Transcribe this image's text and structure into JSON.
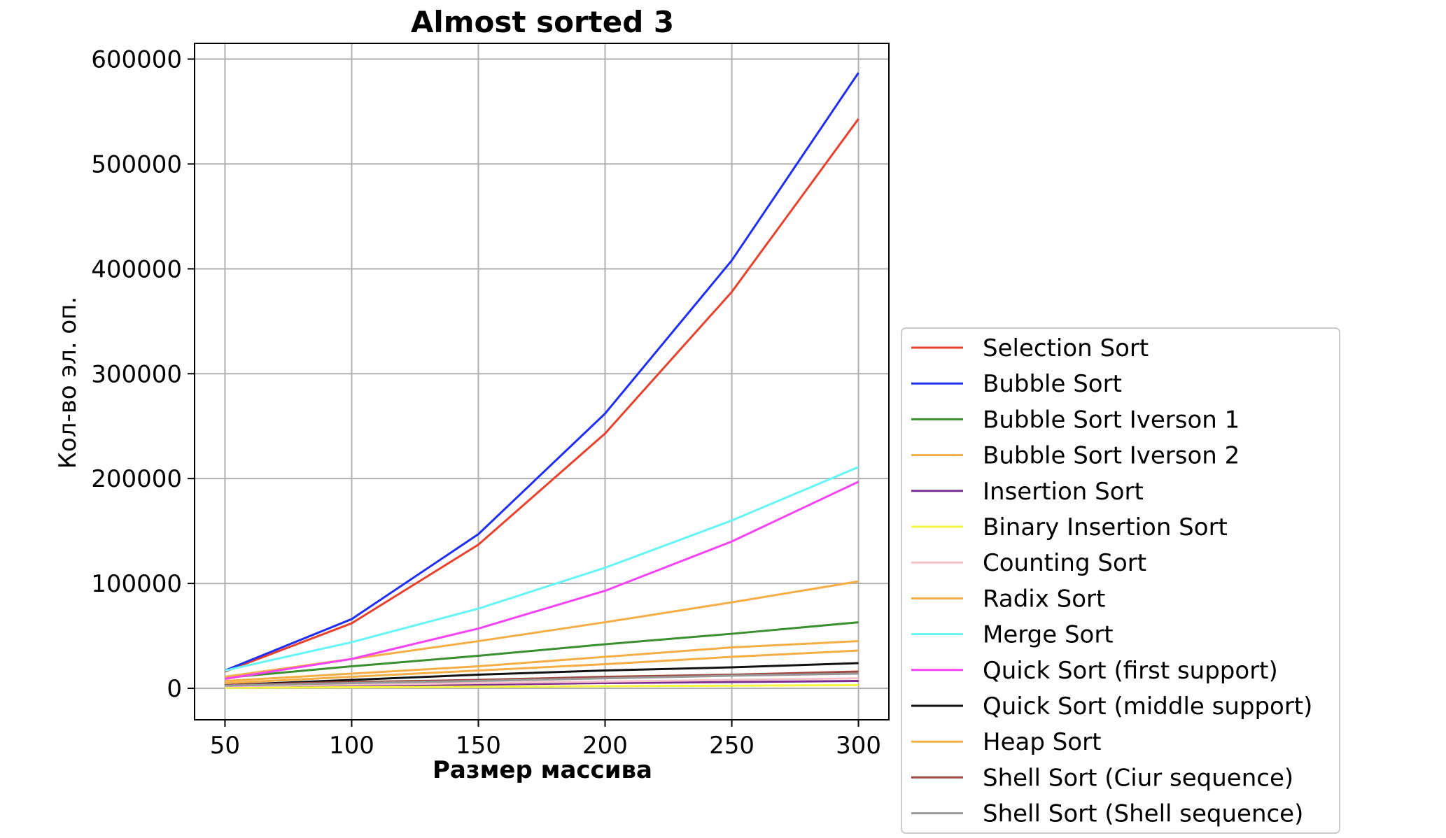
{
  "chart_data": {
    "type": "line",
    "title": "Almost sorted 3",
    "xlabel": "Размер массива",
    "ylabel": "Кол-во эл. оп.",
    "x": [
      50,
      100,
      150,
      200,
      250,
      300
    ],
    "xticks": [
      "50",
      "100",
      "150",
      "200",
      "250",
      "300"
    ],
    "yticks": [
      "0",
      "100000",
      "200000",
      "300000",
      "400000",
      "500000",
      "600000"
    ],
    "xlim": [
      38,
      312
    ],
    "ylim": [
      -30000,
      615000
    ],
    "grid": true,
    "legend_position": "lower-right-outside",
    "series": [
      {
        "name": "Selection Sort",
        "color": "#e8412c",
        "values": [
          16000,
          62000,
          137000,
          243000,
          378000,
          543000
        ]
      },
      {
        "name": "Bubble Sort",
        "color": "#1f2ef5",
        "values": [
          17000,
          66000,
          147000,
          262000,
          408000,
          587000
        ]
      },
      {
        "name": "Bubble Sort Iverson 1",
        "color": "#3a8f2f",
        "values": [
          10000,
          21000,
          31000,
          42000,
          52000,
          63000
        ]
      },
      {
        "name": "Bubble Sort Iverson 2",
        "color": "#f5ad45",
        "values": [
          7000,
          14000,
          21000,
          30000,
          39000,
          45000
        ]
      },
      {
        "name": "Insertion Sort",
        "color": "#7a2e8f",
        "values": [
          1000,
          2500,
          3500,
          5000,
          6000,
          7000
        ]
      },
      {
        "name": "Binary Insertion Sort",
        "color": "#f5f542",
        "values": [
          500,
          1000,
          1500,
          2000,
          2500,
          3000
        ]
      },
      {
        "name": "Counting Sort",
        "color": "#f5c2cb",
        "values": [
          2000,
          3500,
          5000,
          6500,
          8000,
          9500
        ]
      },
      {
        "name": "Radix Sort",
        "color": "#f5ad45",
        "values": [
          11000,
          28000,
          45000,
          63000,
          82000,
          102000
        ]
      },
      {
        "name": "Merge Sort",
        "color": "#66f5f5",
        "values": [
          17000,
          44000,
          76000,
          115000,
          160000,
          211000
        ]
      },
      {
        "name": "Quick Sort (first support)",
        "color": "#f542f5",
        "values": [
          9000,
          28000,
          57000,
          93000,
          140000,
          197000
        ]
      },
      {
        "name": "Quick Sort (middle support)",
        "color": "#111111",
        "values": [
          3000,
          8000,
          13000,
          17000,
          20000,
          24000
        ]
      },
      {
        "name": "Heap Sort",
        "color": "#f5ad45",
        "values": [
          5000,
          11000,
          17000,
          23000,
          30000,
          36000
        ]
      },
      {
        "name": "Shell Sort (Ciur sequence)",
        "color": "#a04a44",
        "values": [
          3000,
          6000,
          8000,
          11000,
          13000,
          16000
        ]
      },
      {
        "name": "Shell Sort (Shell sequence)",
        "color": "#999999",
        "values": [
          2500,
          5000,
          7000,
          9500,
          12000,
          14000
        ]
      }
    ]
  }
}
